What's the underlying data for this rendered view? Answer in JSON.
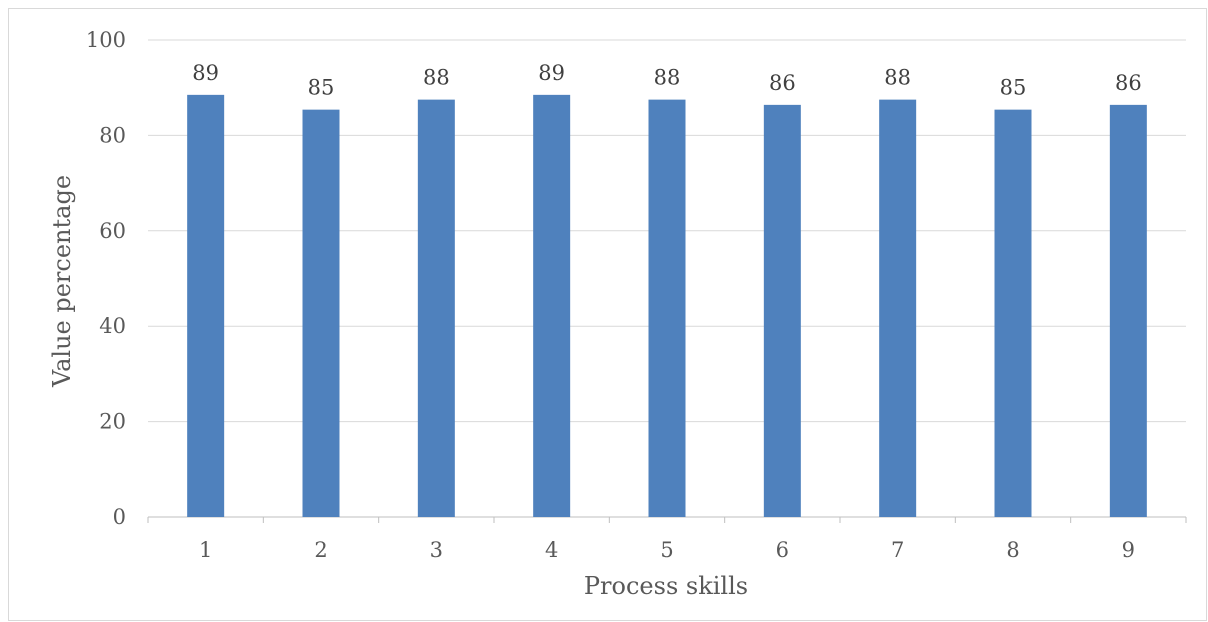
{
  "chart_data": {
    "type": "bar",
    "categories": [
      "1",
      "2",
      "3",
      "4",
      "5",
      "6",
      "7",
      "8",
      "9"
    ],
    "values": [
      88.5,
      85.4,
      87.5,
      88.5,
      87.5,
      86.4,
      87.5,
      85.4,
      86.4
    ],
    "data_labels": [
      "89",
      "85",
      "88",
      "89",
      "88",
      "86",
      "88",
      "85",
      "86"
    ],
    "xlabel": "Process skills",
    "ylabel": "Value percentage",
    "ylim": [
      0,
      100
    ],
    "yticks": [
      0,
      20,
      40,
      60,
      80,
      100
    ],
    "grid": true,
    "legend": "none",
    "bar_color": "#4f81bd",
    "grid_color": "#d9d9d9"
  }
}
